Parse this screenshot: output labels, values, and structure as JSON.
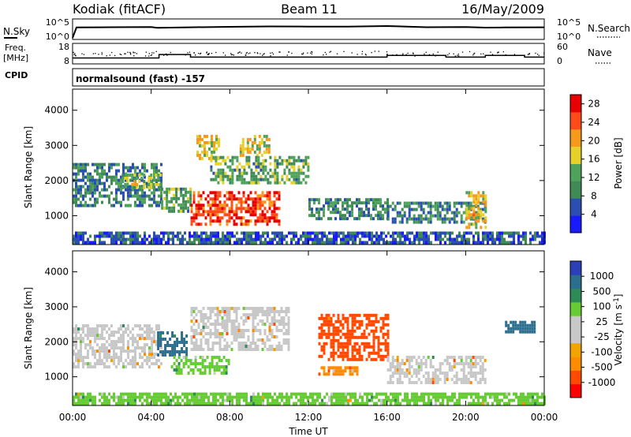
{
  "header": {
    "station": "Kodiak (fitACF)",
    "beam": "Beam 11",
    "date": "16/May/2009"
  },
  "strip_nsky": {
    "left_label": "N.Sky",
    "left_ticks": [
      "10^5",
      "10^0"
    ],
    "right_label": "N.Search",
    "right_ticks": [
      "10^5",
      "10^0"
    ]
  },
  "strip_freq": {
    "left_label_1": "Freq.",
    "left_label_2": "[MHz]",
    "left_ticks": [
      "18",
      "8"
    ],
    "right_label": "Nave",
    "right_ticks": [
      "60",
      "0"
    ]
  },
  "strip_cpid": {
    "label": "CPID",
    "program": "normalsound (fast) -157"
  },
  "colors": {
    "power_scale": [
      "#1a1aff",
      "#2a4fb0",
      "#3f8a55",
      "#4fa25a",
      "#e6d02a",
      "#f59a1a",
      "#ff4a1a",
      "#e60000"
    ],
    "velocity_scale": [
      "#ff0000",
      "#ff4a00",
      "#ff8c00",
      "#f2a400",
      "#c8c8c8",
      "#c8c8c8",
      "#66cc33",
      "#2e8b57",
      "#2c6e8e",
      "#2a3fb8"
    ],
    "velocity_dominant": "#c8c8c8"
  },
  "chart_data": [
    {
      "type": "line",
      "panel": "N.Sky / N.Search",
      "x_unit": "hours UT",
      "xlim": [
        0,
        24
      ],
      "y_scale": "log",
      "ylim": [
        1,
        100000
      ],
      "series": [
        {
          "name": "N.Sky",
          "x": [
            0,
            0.2,
            2,
            4,
            4.3,
            6,
            8,
            10,
            12,
            14,
            16,
            18,
            20,
            21,
            22,
            24
          ],
          "y": [
            1,
            1000,
            1200,
            1300,
            800,
            1100,
            1500,
            2000,
            1800,
            1700,
            2500,
            1200,
            1300,
            900,
            1000,
            1100
          ]
        },
        {
          "name": "N.Search",
          "x": [
            0,
            0.2,
            2,
            4,
            4.3,
            6,
            8,
            10,
            12,
            14,
            16,
            18,
            20,
            21,
            22,
            24
          ],
          "y": [
            1,
            900,
            1100,
            1200,
            700,
            1000,
            1400,
            1800,
            1700,
            1600,
            2200,
            1100,
            1200,
            800,
            900,
            1000
          ]
        }
      ]
    },
    {
      "type": "line",
      "panel": "Freq. / Nave",
      "x_unit": "hours UT",
      "xlim": [
        0,
        24
      ],
      "ylim_left": [
        8,
        18
      ],
      "ylim_right": [
        0,
        60
      ],
      "series": [
        {
          "name": "Freq.",
          "x": [
            0,
            4.4,
            4.4,
            6,
            6,
            16,
            16,
            19,
            19,
            21,
            21,
            23,
            23,
            24
          ],
          "y": [
            10.5,
            10.5,
            12.5,
            12.5,
            11,
            11,
            12,
            12,
            11,
            11,
            12,
            12,
            11,
            11
          ]
        },
        {
          "name": "Nave",
          "x": [
            0,
            4,
            8,
            12,
            16,
            20,
            24
          ],
          "y": [
            30,
            32,
            31,
            33,
            30,
            32,
            31
          ]
        }
      ]
    },
    {
      "type": "heatmap",
      "panel": "Power",
      "x_ticks": [
        "00:00",
        "04:00",
        "08:00",
        "12:00",
        "16:00",
        "20:00",
        "00:00"
      ],
      "xlim": [
        0,
        24
      ],
      "ylabel": "Slant Range [km]",
      "y_ticks": [
        "1000",
        "2000",
        "3000",
        "4000"
      ],
      "ylim": [
        180,
        4600
      ],
      "colorbar_label": "Power [dB]",
      "colorbar_ticks": [
        "4",
        "8",
        "12",
        "16",
        "20",
        "24",
        "28"
      ],
      "colorbar_range": [
        0,
        30
      ],
      "regions": [
        {
          "hours": [
            0,
            4.5
          ],
          "range_km": [
            1300,
            2500
          ],
          "power_db": 9
        },
        {
          "hours": [
            2.5,
            4.5
          ],
          "range_km": [
            1800,
            2200
          ],
          "power_db": 15
        },
        {
          "hours": [
            4.5,
            6
          ],
          "range_km": [
            1100,
            1800
          ],
          "power_db": 12
        },
        {
          "hours": [
            6,
            10.5
          ],
          "range_km": [
            800,
            1700
          ],
          "power_db": 26
        },
        {
          "hours": [
            6.3,
            7.5
          ],
          "range_km": [
            2600,
            3300
          ],
          "power_db": 18
        },
        {
          "hours": [
            8.5,
            10
          ],
          "range_km": [
            2700,
            3300
          ],
          "power_db": 17
        },
        {
          "hours": [
            7,
            12
          ],
          "range_km": [
            1900,
            2700
          ],
          "power_db": 12
        },
        {
          "hours": [
            12,
            16
          ],
          "range_km": [
            900,
            1500
          ],
          "power_db": 10
        },
        {
          "hours": [
            16,
            21
          ],
          "range_km": [
            800,
            1400
          ],
          "power_db": 9
        },
        {
          "hours": [
            20,
            21
          ],
          "range_km": [
            700,
            1700
          ],
          "power_db": 18
        },
        {
          "hours": [
            0,
            24
          ],
          "range_km": [
            200,
            550
          ],
          "power_db": 6
        }
      ]
    },
    {
      "type": "heatmap",
      "panel": "Velocity",
      "x_ticks": [
        "00:00",
        "04:00",
        "08:00",
        "12:00",
        "16:00",
        "20:00",
        "00:00"
      ],
      "xlim": [
        0,
        24
      ],
      "xlabel": "Time UT",
      "ylabel": "Slant Range [km]",
      "y_ticks": [
        "1000",
        "2000",
        "3000",
        "4000"
      ],
      "ylim": [
        180,
        4600
      ],
      "colorbar_label": "Velocity [m s-1]",
      "colorbar_ticks": [
        "1000",
        "500",
        "100",
        "25",
        "-25",
        "-100",
        "-500",
        "-1000"
      ],
      "regions": [
        {
          "hours": [
            0,
            4.5
          ],
          "range_km": [
            1300,
            2500
          ],
          "velocity": 0
        },
        {
          "hours": [
            4.3,
            5.8
          ],
          "range_km": [
            1600,
            2300
          ],
          "velocity": 300
        },
        {
          "hours": [
            5,
            8
          ],
          "range_km": [
            1100,
            1600
          ],
          "velocity": 80
        },
        {
          "hours": [
            6,
            11
          ],
          "range_km": [
            1800,
            3000
          ],
          "velocity": 0
        },
        {
          "hours": [
            12.5,
            14.5
          ],
          "range_km": [
            1100,
            1300
          ],
          "velocity": -80
        },
        {
          "hours": [
            12.5,
            16
          ],
          "range_km": [
            1500,
            2800
          ],
          "velocity": -200
        },
        {
          "hours": [
            16,
            21
          ],
          "range_km": [
            800,
            1600
          ],
          "velocity": 0
        },
        {
          "hours": [
            22,
            23.5
          ],
          "range_km": [
            2300,
            2600
          ],
          "velocity": 300
        },
        {
          "hours": [
            0,
            24
          ],
          "range_km": [
            200,
            550
          ],
          "velocity": 60
        }
      ]
    }
  ]
}
